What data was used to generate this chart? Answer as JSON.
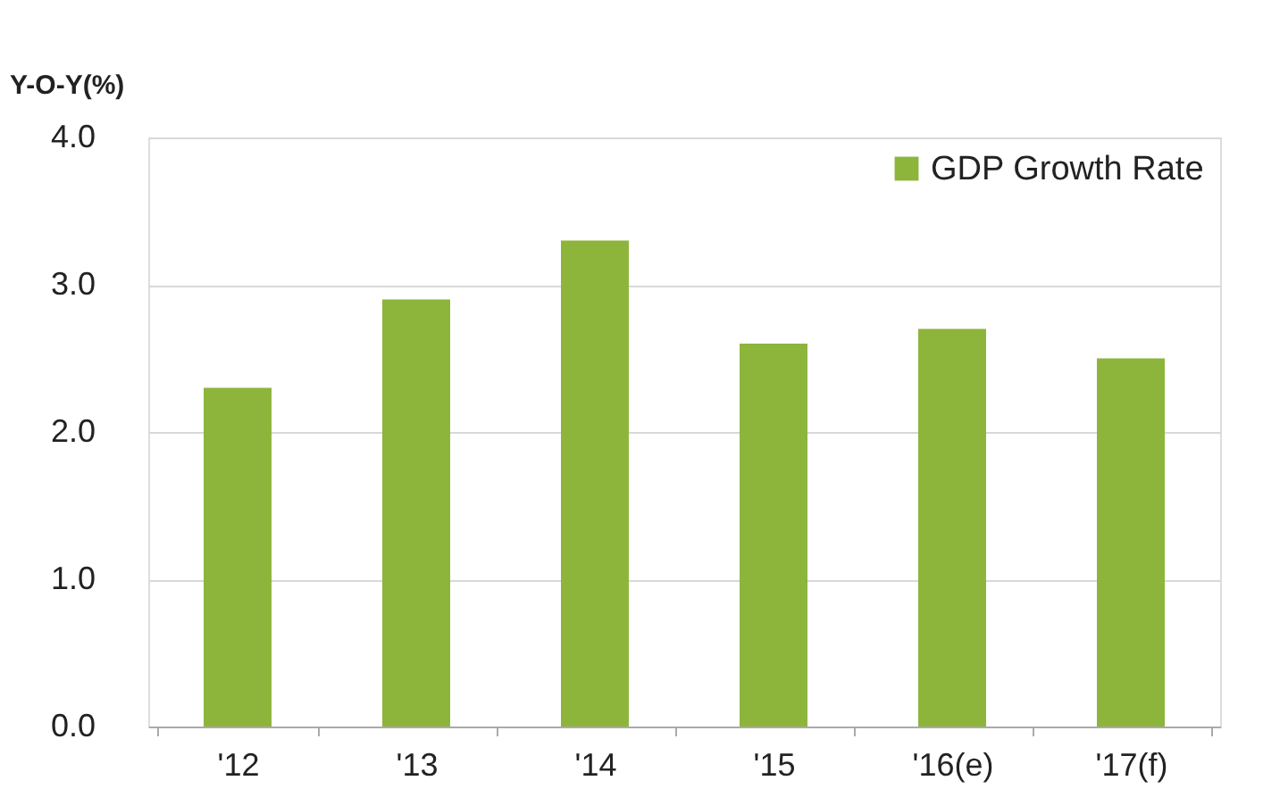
{
  "chart_data": {
    "type": "bar",
    "ylabel": "Y-O-Y(%)",
    "categories": [
      "'12",
      "'13",
      "'14",
      "'15",
      "'16(e)",
      "'17(f)"
    ],
    "series": [
      {
        "name": "GDP Growth Rate",
        "color": "#8db53c",
        "values": [
          2.3,
          2.9,
          3.3,
          2.6,
          2.7,
          2.5
        ]
      }
    ],
    "ylim": [
      0,
      4
    ],
    "yticks": [
      {
        "value": 0,
        "label": "0.0"
      },
      {
        "value": 1,
        "label": "1.0"
      },
      {
        "value": 2,
        "label": "2.0"
      },
      {
        "value": 3,
        "label": "3.0"
      },
      {
        "value": 4,
        "label": "4.0"
      }
    ],
    "grid": "y",
    "legend": "top right"
  }
}
